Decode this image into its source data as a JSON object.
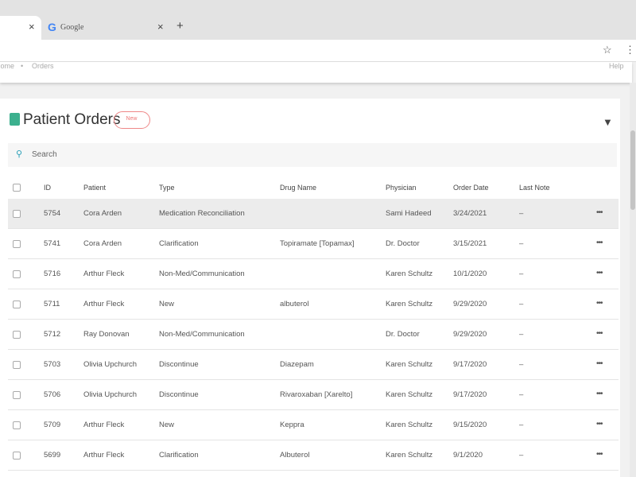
{
  "browser": {
    "tab_title": "Google",
    "tab_close": "×",
    "new_tab": "+",
    "breadcrumb": [
      "Home",
      "Orders"
    ],
    "help": "Help"
  },
  "header": {
    "title": "Patient Orders",
    "button": "New"
  },
  "search": {
    "placeholder": "Search"
  },
  "table": {
    "columns": [
      "ID",
      "Patient",
      "Type",
      "Drug Name",
      "Physician",
      "Order Date",
      "Last Note"
    ],
    "rows": [
      {
        "id": "5754",
        "patient": "Cora Arden",
        "type": "Medication Reconciliation",
        "physician": "Sami Hadeed",
        "date": "3/24/2021",
        "note": "–"
      },
      {
        "id": "5741",
        "patient": "Cora Arden",
        "type": "Clarification",
        "drug": "Topiramate [Topamax]",
        "physician": "Dr. Doctor",
        "date": "3/15/2021",
        "note": "–"
      },
      {
        "id": "5716",
        "patient": "Arthur Fleck",
        "type": "Non-Med/Communication",
        "physician": "Karen Schultz",
        "date": "10/1/2020",
        "note": "–"
      },
      {
        "id": "5711",
        "patient": "Arthur Fleck",
        "type": "New",
        "drug": "albuterol",
        "physician": "Karen Schultz",
        "date": "9/29/2020",
        "note": "–"
      },
      {
        "id": "5712",
        "patient": "Ray Donovan",
        "type": "Non-Med/Communication",
        "physician": "Dr. Doctor",
        "date": "9/29/2020",
        "note": "–"
      },
      {
        "id": "5703",
        "patient": "Olivia Upchurch",
        "type": "Discontinue",
        "drug": "Diazepam",
        "physician": "Karen Schultz",
        "date": "9/17/2020",
        "note": "–"
      },
      {
        "id": "5706",
        "patient": "Olivia Upchurch",
        "type": "Discontinue",
        "drug": "Rivaroxaban [Xarelto]",
        "physician": "Karen Schultz",
        "date": "9/17/2020",
        "note": "–"
      },
      {
        "id": "5709",
        "patient": "Arthur Fleck",
        "type": "New",
        "drug": "Keppra",
        "physician": "Karen Schultz",
        "date": "9/15/2020",
        "note": "–"
      },
      {
        "id": "5699",
        "patient": "Arthur Fleck",
        "type": "Clarification",
        "drug": "Albuterol",
        "physician": "Karen Schultz",
        "date": "9/1/2020",
        "note": "–"
      }
    ]
  }
}
